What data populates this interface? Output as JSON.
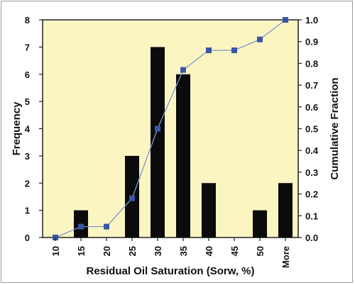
{
  "chart_data": {
    "type": "bar",
    "xlabel": "Residual Oil Saturation (Sorw, %)",
    "ylabel": "Frequency",
    "y2label": "Cumulative Fraction",
    "categories": [
      "10",
      "15",
      "20",
      "25",
      "30",
      "35",
      "40",
      "45",
      "50",
      "More"
    ],
    "series": [
      {
        "values": [
          0,
          1,
          0,
          3,
          7,
          6,
          2,
          0,
          1,
          2
        ],
        "kind": "bar",
        "axis": "left",
        "color": "#0b0b0b"
      },
      {
        "values": [
          0.0,
          0.05,
          0.05,
          0.18,
          0.5,
          0.77,
          0.86,
          0.86,
          0.91,
          1.0
        ],
        "kind": "line",
        "axis": "right",
        "color": "#3a55a4"
      }
    ],
    "ylim": [
      0,
      8
    ],
    "y2lim": [
      0,
      1.0
    ],
    "yticks": [
      "0",
      "1",
      "2",
      "3",
      "4",
      "5",
      "6",
      "7",
      "8"
    ],
    "y2ticks": [
      "0.0",
      "0.1",
      "0.2",
      "0.3",
      "0.4",
      "0.5",
      "0.6",
      "0.7",
      "0.8",
      "0.9",
      "1.0"
    ],
    "plot_background": "#fbf5c2",
    "grid": false,
    "legend": "none"
  }
}
